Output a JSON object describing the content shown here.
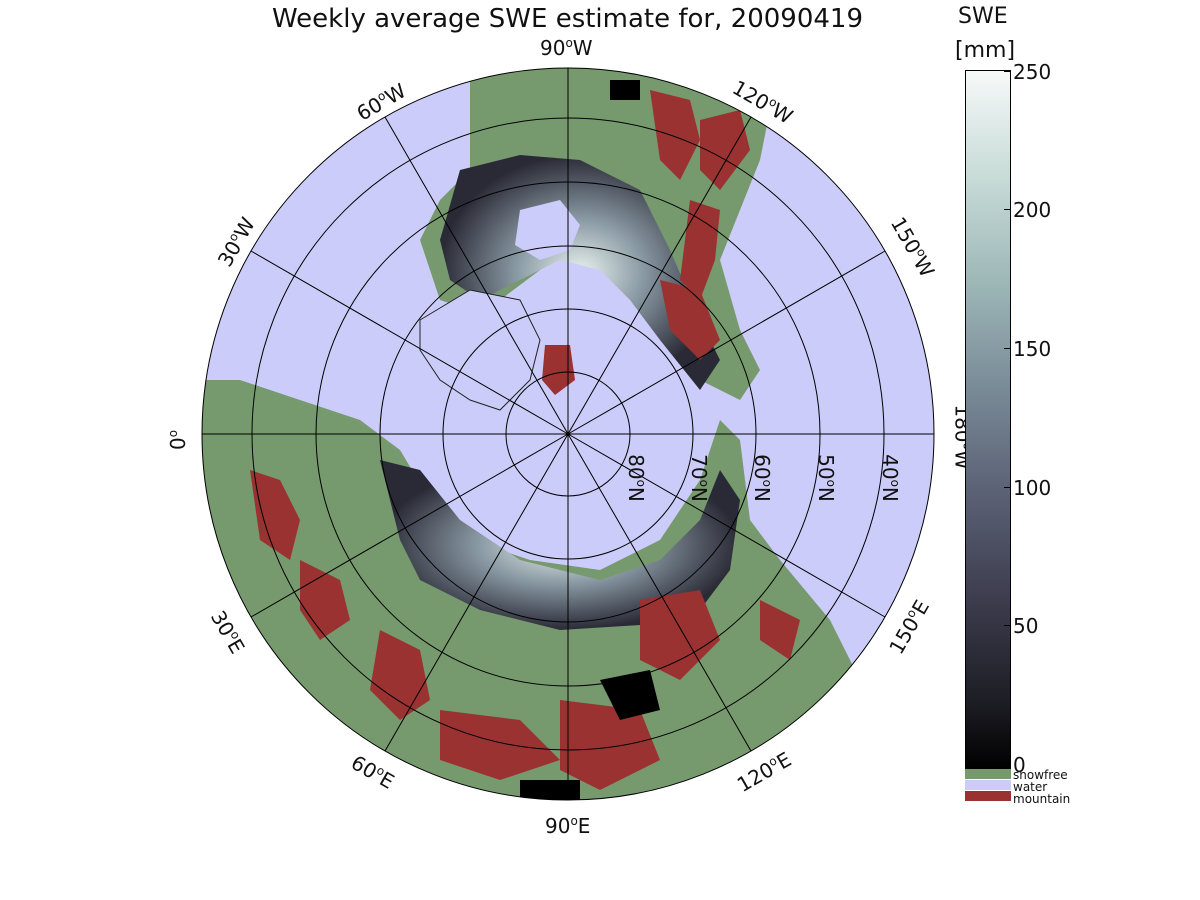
{
  "title": "Weekly average SWE estimate for, 20090419",
  "map": {
    "longitude_labels": [
      "90°W",
      "120°W",
      "150°W",
      "180°W",
      "150°E",
      "120°E",
      "90°E",
      "60°E",
      "30°E",
      "0°",
      "30°W",
      "60°W"
    ],
    "latitude_labels": [
      "80°N",
      "70°N",
      "60°N",
      "50°N",
      "40°N"
    ],
    "colors": {
      "water": "#ccccfa",
      "snowfree": "#76996e",
      "mountain": "#9a3232",
      "background": "#ffffff"
    }
  },
  "colorbar": {
    "title": "SWE",
    "unit": "[mm]",
    "range": [
      0,
      250
    ],
    "ticks": [
      "250",
      "200",
      "150",
      "100",
      "50",
      "0"
    ],
    "scale_colors": [
      "#000000",
      "#3e3e50",
      "#7a8c98",
      "#c8dcd8",
      "#f6f9f8"
    ],
    "categories": [
      {
        "label": "snowfree",
        "color": "#76996e"
      },
      {
        "label": "water",
        "color": "#ccccfa"
      },
      {
        "label": "mountain",
        "color": "#9a3232"
      }
    ]
  }
}
